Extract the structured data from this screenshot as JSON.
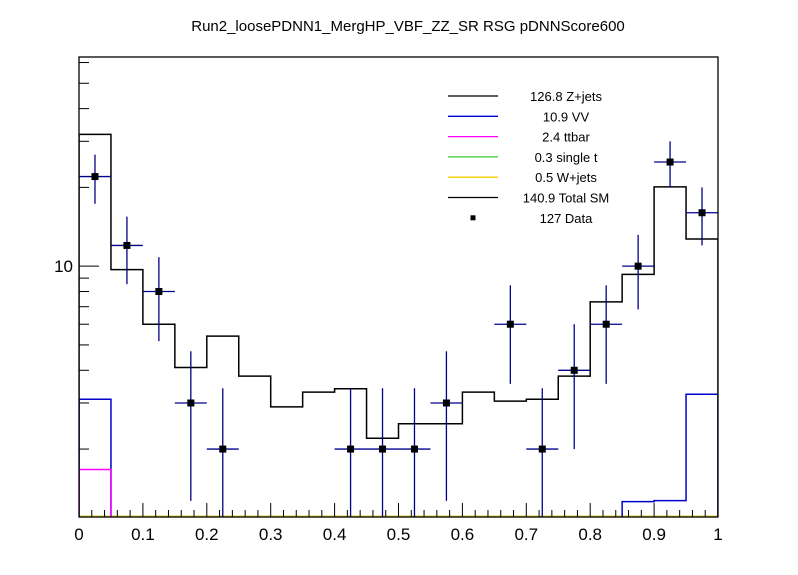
{
  "chart_data": {
    "type": "histogram",
    "title": "Run2_loosePDNN1_MergHP_VBF_ZZ_SR RSG  pDNNScore600",
    "xlabel": "",
    "ylabel": "",
    "xlim": [
      0,
      1
    ],
    "ylim": [
      1.1,
      63
    ],
    "yscale": "log",
    "grid": false,
    "legend_position": "top-right",
    "bin_edges": [
      0,
      0.05,
      0.1,
      0.15,
      0.2,
      0.25,
      0.3,
      0.35,
      0.4,
      0.45,
      0.5,
      0.55,
      0.6,
      0.65,
      0.7,
      0.75,
      0.8,
      0.85,
      0.9,
      0.95,
      1.0
    ],
    "x_tick_labels": [
      "0",
      "0.1",
      "0.2",
      "0.3",
      "0.4",
      "0.5",
      "0.6",
      "0.7",
      "0.8",
      "0.9",
      "1"
    ],
    "x_tick_values": [
      0,
      0.1,
      0.2,
      0.3,
      0.4,
      0.5,
      0.6,
      0.7,
      0.8,
      0.9,
      1
    ],
    "y_tick_labels": [
      "10"
    ],
    "y_tick_values": [
      10
    ],
    "series": [
      {
        "name": "Total SM",
        "legend": "140.9 Total SM",
        "color": "#000000",
        "style": "step",
        "values": [
          31.9,
          9.7,
          6.0,
          4.1,
          5.4,
          3.8,
          2.9,
          3.3,
          3.4,
          2.2,
          2.5,
          2.5,
          3.3,
          3.05,
          3.1,
          3.8,
          7.3,
          9.3,
          20.1,
          12.7
        ]
      },
      {
        "name": "VV",
        "legend": "10.9 VV",
        "color": "#0000cc",
        "style": "step",
        "values": [
          3.1,
          0,
          0,
          0,
          0,
          0,
          0,
          0,
          0,
          0,
          0,
          0,
          0,
          0,
          0,
          0,
          0,
          1.26,
          1.27,
          3.24
        ]
      },
      {
        "name": "ttbar",
        "legend": "2.4 ttbar",
        "color": "#ff00ff",
        "style": "step",
        "values": [
          1.67,
          0,
          0,
          0,
          0,
          0,
          0,
          0,
          0,
          0,
          0,
          0,
          0,
          0,
          0,
          0,
          0,
          0,
          0,
          0
        ]
      },
      {
        "name": "Data",
        "legend": "127 Data",
        "color": "#000000",
        "errcolor": "#00008b",
        "style": "points",
        "values": [
          22,
          12,
          8,
          3,
          2,
          0,
          0,
          0,
          2,
          2,
          2,
          3,
          0,
          6,
          2,
          4,
          6,
          10,
          25,
          16
        ]
      }
    ],
    "legend_entries": [
      {
        "label": "126.8 Z+jets",
        "color": "#000000",
        "kind": "line"
      },
      {
        "label": "10.9 VV",
        "color": "#0000cc",
        "kind": "line"
      },
      {
        "label": "2.4 ttbar",
        "color": "#ff00ff",
        "kind": "line"
      },
      {
        "label": "0.3 single t",
        "color": "#33cc33",
        "kind": "line"
      },
      {
        "label": "0.5 W+jets",
        "color": "#ffcc00",
        "kind": "line"
      },
      {
        "label": "140.9 Total SM",
        "color": "#000000",
        "kind": "line"
      },
      {
        "label": "127 Data",
        "color": "#000000",
        "kind": "marker"
      }
    ]
  }
}
